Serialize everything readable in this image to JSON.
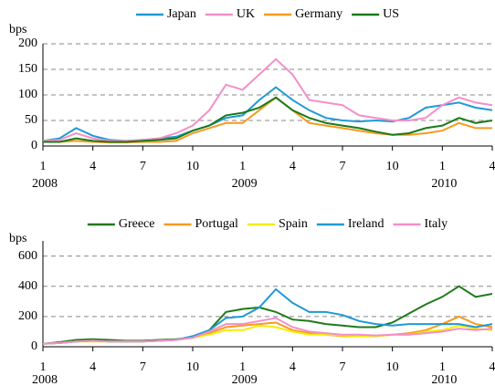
{
  "chart_data": [
    {
      "type": "line",
      "ylabel": "bps",
      "ylim": [
        0,
        200
      ],
      "yticks": [
        0,
        50,
        100,
        150,
        200
      ],
      "grid": true,
      "xlim": [
        "2008-01",
        "2010-04"
      ],
      "xticks": [
        {
          "value": "2008-01",
          "label": "1"
        },
        {
          "value": "2008-04",
          "label": "4"
        },
        {
          "value": "2008-07",
          "label": "7"
        },
        {
          "value": "2008-10",
          "label": "10"
        },
        {
          "value": "2009-01",
          "label": "1"
        },
        {
          "value": "2009-04",
          "label": "4"
        },
        {
          "value": "2009-07",
          "label": "7"
        },
        {
          "value": "2009-10",
          "label": "10"
        },
        {
          "value": "2010-01",
          "label": "1"
        },
        {
          "value": "2010-04",
          "label": "4"
        }
      ],
      "year_labels": [
        {
          "value": "2008-01",
          "label": "2008"
        },
        {
          "value": "2009-01",
          "label": "2009"
        },
        {
          "value": "2010-01",
          "label": "2010"
        }
      ],
      "x": [
        "2008-01",
        "2008-02",
        "2008-03",
        "2008-04",
        "2008-05",
        "2008-06",
        "2008-07",
        "2008-08",
        "2008-09",
        "2008-10",
        "2008-11",
        "2008-12",
        "2009-01",
        "2009-02",
        "2009-03",
        "2009-04",
        "2009-05",
        "2009-06",
        "2009-07",
        "2009-08",
        "2009-09",
        "2009-10",
        "2009-11",
        "2009-12",
        "2010-01",
        "2010-02",
        "2010-03",
        "2010-04"
      ],
      "series": [
        {
          "name": "Japan",
          "color": "#1f9ad6",
          "values": [
            10,
            15,
            35,
            20,
            12,
            10,
            12,
            15,
            18,
            30,
            40,
            55,
            60,
            90,
            115,
            90,
            70,
            55,
            50,
            48,
            50,
            48,
            55,
            75,
            80,
            85,
            75,
            70
          ]
        },
        {
          "name": "UK",
          "color": "#f48fc8",
          "values": [
            10,
            12,
            25,
            15,
            10,
            10,
            12,
            15,
            25,
            40,
            70,
            120,
            110,
            140,
            170,
            140,
            90,
            85,
            80,
            60,
            55,
            50,
            50,
            55,
            80,
            95,
            85,
            80
          ]
        },
        {
          "name": "Germany",
          "color": "#f79a1e",
          "values": [
            8,
            8,
            10,
            8,
            7,
            7,
            8,
            8,
            10,
            25,
            35,
            45,
            45,
            70,
            95,
            70,
            45,
            40,
            35,
            30,
            25,
            22,
            22,
            25,
            30,
            45,
            35,
            35
          ]
        },
        {
          "name": "US",
          "color": "#1a7a1a",
          "values": [
            8,
            8,
            15,
            10,
            8,
            8,
            10,
            12,
            15,
            30,
            40,
            60,
            65,
            75,
            95,
            70,
            55,
            45,
            40,
            35,
            28,
            22,
            25,
            35,
            40,
            55,
            45,
            50
          ]
        }
      ]
    },
    {
      "type": "line",
      "ylabel": "bps",
      "ylim": [
        0,
        700
      ],
      "yticks": [
        0,
        200,
        400,
        600
      ],
      "grid": true,
      "xlim": [
        "2008-01",
        "2010-04"
      ],
      "xticks": [
        {
          "value": "2008-01",
          "label": "1"
        },
        {
          "value": "2008-04",
          "label": "4"
        },
        {
          "value": "2008-07",
          "label": "7"
        },
        {
          "value": "2008-10",
          "label": "10"
        },
        {
          "value": "2009-01",
          "label": "1"
        },
        {
          "value": "2009-04",
          "label": "4"
        },
        {
          "value": "2009-07",
          "label": "7"
        },
        {
          "value": "2009-10",
          "label": "10"
        },
        {
          "value": "2010-01",
          "label": "1"
        },
        {
          "value": "2010-04",
          "label": "4"
        }
      ],
      "year_labels": [
        {
          "value": "2008-01",
          "label": "2008"
        },
        {
          "value": "2009-01",
          "label": "2009"
        },
        {
          "value": "2010-01",
          "label": "2010"
        }
      ],
      "x": [
        "2008-01",
        "2008-02",
        "2008-03",
        "2008-04",
        "2008-05",
        "2008-06",
        "2008-07",
        "2008-08",
        "2008-09",
        "2008-10",
        "2008-11",
        "2008-12",
        "2009-01",
        "2009-02",
        "2009-03",
        "2009-04",
        "2009-05",
        "2009-06",
        "2009-07",
        "2009-08",
        "2009-09",
        "2009-10",
        "2009-11",
        "2009-12",
        "2010-01",
        "2010-02",
        "2010-03",
        "2010-04"
      ],
      "series": [
        {
          "name": "Greece",
          "color": "#1f7a1a",
          "values": [
            20,
            30,
            45,
            50,
            45,
            40,
            40,
            45,
            50,
            60,
            110,
            230,
            250,
            260,
            230,
            180,
            170,
            150,
            140,
            130,
            130,
            160,
            220,
            280,
            330,
            400,
            330,
            350
          ]
        },
        {
          "name": "Portugal",
          "color": "#f79a1e",
          "values": [
            20,
            25,
            35,
            40,
            35,
            35,
            35,
            40,
            45,
            60,
            90,
            130,
            140,
            150,
            160,
            110,
            90,
            80,
            70,
            70,
            70,
            80,
            90,
            110,
            150,
            200,
            150,
            130
          ]
        },
        {
          "name": "Spain",
          "color": "#f2ee00",
          "values": [
            20,
            25,
            35,
            35,
            35,
            35,
            35,
            40,
            45,
            60,
            80,
            110,
            110,
            140,
            130,
            100,
            80,
            80,
            75,
            70,
            70,
            80,
            80,
            100,
            110,
            140,
            120,
            110
          ]
        },
        {
          "name": "Ireland",
          "color": "#1f9ad6",
          "values": [
            20,
            25,
            35,
            40,
            35,
            35,
            35,
            40,
            45,
            70,
            110,
            190,
            200,
            260,
            380,
            290,
            230,
            230,
            210,
            170,
            150,
            140,
            150,
            150,
            150,
            150,
            130,
            150
          ]
        },
        {
          "name": "Italy",
          "color": "#f48fc8",
          "values": [
            20,
            25,
            35,
            40,
            35,
            35,
            35,
            40,
            45,
            60,
            100,
            150,
            150,
            170,
            190,
            130,
            100,
            90,
            80,
            80,
            75,
            80,
            80,
            90,
            100,
            120,
            110,
            120
          ]
        }
      ]
    }
  ]
}
